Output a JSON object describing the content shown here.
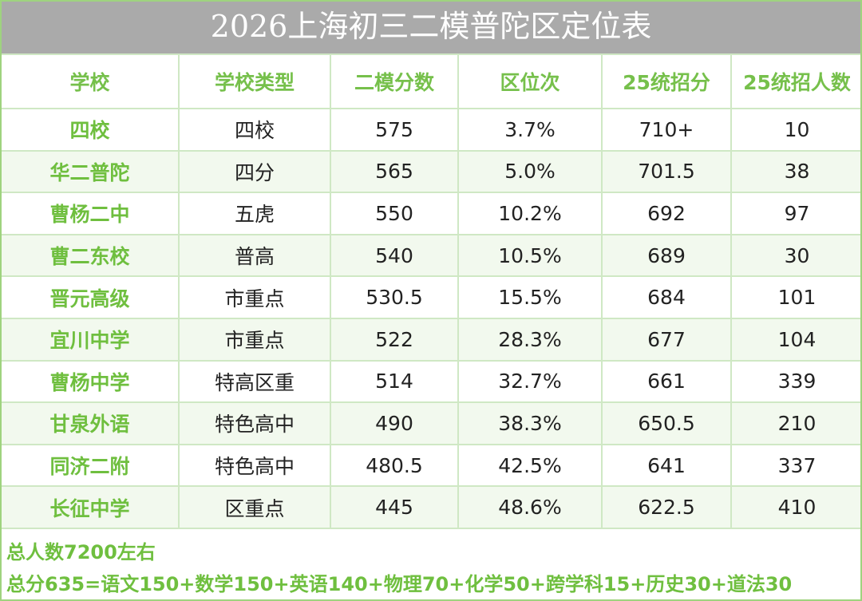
{
  "title": "2026上海初三二模普陀区定位表",
  "headers": [
    "学校",
    "学校类型",
    "二模分数",
    "区位次",
    "25统招分",
    "25统招人数"
  ],
  "rows": [
    [
      "四校",
      "四校",
      "575",
      "3.7%",
      "710+",
      "10"
    ],
    [
      "华二普陀",
      "四分",
      "565",
      "5.0%",
      "701.5",
      "38"
    ],
    [
      "曹杨二中",
      "五虎",
      "550",
      "10.2%",
      "692",
      "97"
    ],
    [
      "曹二东校",
      "普高",
      "540",
      "10.5%",
      "689",
      "30"
    ],
    [
      "晋元高级",
      "市重点",
      "530.5",
      "15.5%",
      "684",
      "101"
    ],
    [
      "宜川中学",
      "市重点",
      "522",
      "28.3%",
      "677",
      "104"
    ],
    [
      "曹杨中学",
      "特高区重",
      "514",
      "32.7%",
      "661",
      "339"
    ],
    [
      "甘泉外语",
      "特色高中",
      "490",
      "38.3%",
      "650.5",
      "210"
    ],
    [
      "同济二附",
      "特色高中",
      "480.5",
      "42.5%",
      "641",
      "337"
    ],
    [
      "长征中学",
      "区重点",
      "445",
      "48.6%",
      "622.5",
      "410"
    ]
  ],
  "notes": {
    "total_students": "总人数7200左右",
    "score_breakdown": "总分635=语文150+数学150+英语140+物理70+化学50+跨学科15+历史30+道法30"
  }
}
